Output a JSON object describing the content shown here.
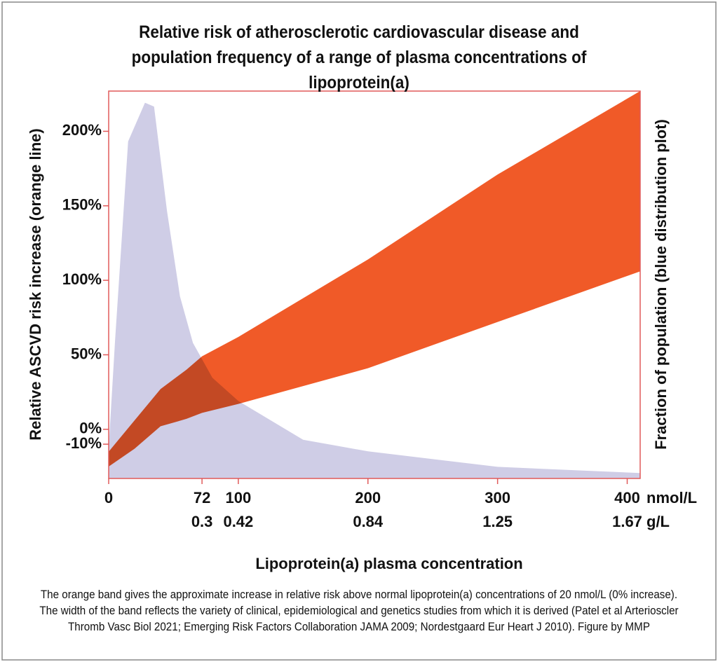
{
  "chart_data": {
    "type": "area",
    "title": "Relative risk of atherosclerotic cardiovascular disease and population frequency of a range of plasma concentrations of lipoprotein(a)",
    "y_label": "Relative ASCVD risk increase (orange line)",
    "y2_label": "Fraction of population (blue distribution plot)",
    "x_label": "Lipoprotein(a) plasma concentration",
    "x_unit": "nmol/L",
    "x2_unit": "g/L",
    "caption": "The orange band gives the approximate increase in relative risk above normal lipoprotein(a) concentrations of 20 nmol/L (0% increase). The width of the band reflects the variety of clinical, epidemiological and genetics studies from which it is derived (Patel et al Arterioscler Thromb Vasc Biol 2021; Emerging Risk Factors Collaboration JAMA 2009; Nordestgaard Eur Heart J 2010). Figure by MMP",
    "xlim": [
      0,
      410
    ],
    "xticks": [
      0,
      72,
      100,
      200,
      300,
      400
    ],
    "x2ticks": [
      {
        "value": 72,
        "label": "0.3"
      },
      {
        "value": 100,
        "label": "0.42"
      },
      {
        "value": 200,
        "label": "0.84"
      },
      {
        "value": 300,
        "label": "1.25"
      },
      {
        "value": 400,
        "label": "1.67"
      }
    ],
    "ylim": [
      -33,
      227
    ],
    "yticks": [
      {
        "value": -10,
        "label": "-10%"
      },
      {
        "value": 0,
        "label": "0%"
      },
      {
        "value": 50,
        "label": "50%"
      },
      {
        "value": 100,
        "label": "100%"
      },
      {
        "value": 150,
        "label": "150%"
      },
      {
        "value": 200,
        "label": "200%"
      }
    ],
    "y2lim": [
      0,
      100
    ],
    "band": {
      "color": "#f05a28",
      "x": [
        0,
        20,
        40,
        60,
        72,
        100,
        200,
        300,
        410
      ],
      "upper": [
        -15,
        6,
        27,
        40,
        49,
        62,
        114,
        171,
        227
      ],
      "lower": [
        -25,
        -13,
        2,
        7,
        11,
        17,
        41,
        72,
        106
      ]
    },
    "distribution": {
      "color": "#cfcde6",
      "axis": "y2",
      "x": [
        0,
        5,
        15,
        28,
        35,
        45,
        55,
        65,
        80,
        100,
        120,
        150,
        200,
        300,
        410
      ],
      "values": [
        8,
        36,
        87,
        97,
        96,
        69,
        47,
        35,
        26,
        20,
        16,
        10,
        7,
        3,
        1.4
      ]
    }
  }
}
